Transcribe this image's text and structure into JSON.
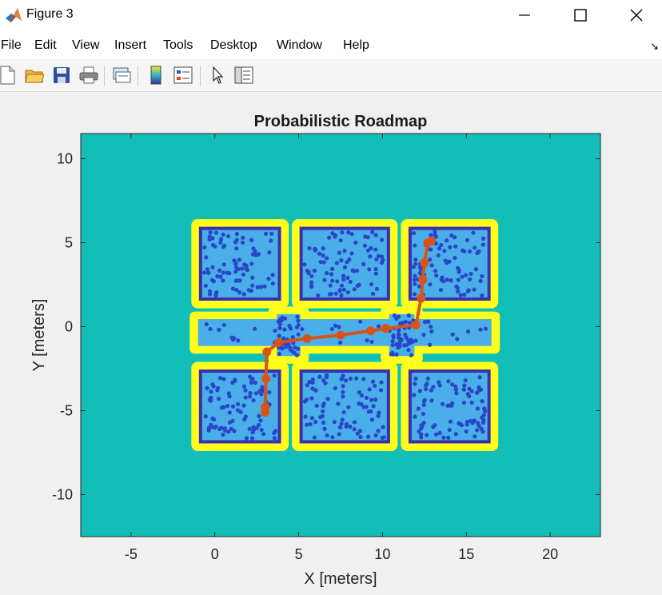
{
  "window": {
    "title": "Figure 3",
    "minimize_icon": "minimize-icon",
    "maximize_icon": "maximize-icon",
    "close_icon": "close-icon"
  },
  "menu": {
    "items": [
      "File",
      "Edit",
      "View",
      "Insert",
      "Tools",
      "Desktop",
      "Window",
      "Help"
    ]
  },
  "toolbar": {
    "tools": [
      "new-figure-icon",
      "open-file-icon",
      "save-icon",
      "print-icon",
      "link-plot-icon",
      "insert-colorbar-icon",
      "insert-legend-icon",
      "edit-plot-icon",
      "property-inspector-icon"
    ]
  },
  "chart_data": {
    "type": "scatter",
    "title": "Probabilistic Roadmap",
    "xlabel": "X [meters]",
    "ylabel": "Y [meters]",
    "xlim": [
      -8,
      23
    ],
    "ylim": [
      -12.5,
      11.5
    ],
    "xticks": [
      -5,
      0,
      5,
      10,
      15,
      20
    ],
    "xtick_labels": [
      "-5",
      "0",
      "5",
      "10",
      "15",
      "20"
    ],
    "yticks": [
      -10,
      -5,
      0,
      5,
      10
    ],
    "ytick_labels": [
      "-10",
      "-5",
      "0",
      "5",
      "10"
    ],
    "grid": false,
    "colors": {
      "background": "#12bfb8",
      "obstacle_inflation": "#ffff1a",
      "free_space": "#4aaee8",
      "obstacle_core": "#3b2fb0",
      "nodes": "#2a45c8",
      "path": "#d95319"
    },
    "path": {
      "x": [
        12.9,
        12.7,
        12.5,
        12.4,
        12.3,
        12.0,
        10.2,
        9.3,
        7.5,
        5.5,
        3.8,
        3.1,
        3.05,
        3.0,
        3.0
      ],
      "y": [
        5.1,
        5.0,
        3.8,
        2.8,
        1.7,
        0.1,
        -0.1,
        -0.25,
        -0.5,
        -0.7,
        -0.95,
        -1.5,
        -3.1,
        -4.8,
        -5.1
      ]
    },
    "obstacles": [
      {
        "x": [
          -1.5,
          4.5
        ],
        "y": [
          1,
          6.5
        ]
      },
      {
        "x": [
          4.5,
          11
        ],
        "y": [
          1,
          6.5
        ]
      },
      {
        "x": [
          11,
          17
        ],
        "y": [
          1,
          6.5
        ]
      },
      {
        "x": [
          -1.5,
          4.5
        ],
        "y": [
          -7.5,
          -2
        ]
      },
      {
        "x": [
          4.5,
          11
        ],
        "y": [
          -7.5,
          -2
        ]
      },
      {
        "x": [
          11,
          17
        ],
        "y": [
          -7.5,
          -2
        ]
      }
    ]
  }
}
